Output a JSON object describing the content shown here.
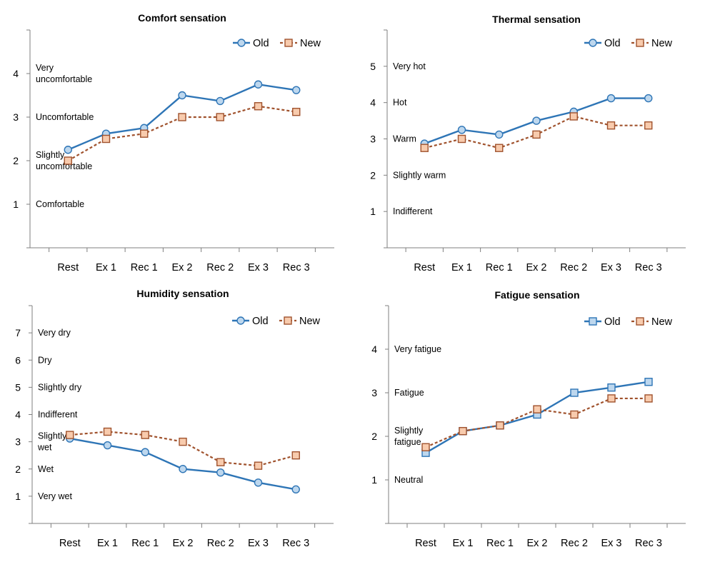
{
  "colors": {
    "old": "#2e75b6",
    "old_fill": "#bdd7ee",
    "new": "#a0522d",
    "new_fill": "#f8cbad",
    "axis": "#7f7f7f"
  },
  "chart_data": [
    {
      "type": "line",
      "title": "Comfort sensation",
      "categories": [
        "Rest",
        "Ex 1",
        "Rec 1",
        "Ex 2",
        "Rec 2",
        "Ex 3",
        "Rec 3"
      ],
      "ylim": [
        0,
        5
      ],
      "yticks": [
        "1",
        "2",
        "3",
        "4"
      ],
      "yticklabels_values": [
        1,
        2,
        3,
        4
      ],
      "level_labels": [
        {
          "y": 1,
          "lines": [
            "Comfortable"
          ]
        },
        {
          "y": 2,
          "lines": [
            "Slightly",
            "uncomfortable"
          ]
        },
        {
          "y": 3,
          "lines": [
            "Uncomfortable"
          ]
        },
        {
          "y": 4,
          "lines": [
            "Very",
            "uncomfortable"
          ]
        }
      ],
      "legend": "top-right",
      "old_marker": "circle",
      "series": [
        {
          "name": "Old",
          "values": [
            2.25,
            2.62,
            2.75,
            3.5,
            3.37,
            3.75,
            3.62
          ]
        },
        {
          "name": "New",
          "values": [
            2.0,
            2.5,
            2.62,
            3.0,
            3.0,
            3.25,
            3.12
          ]
        }
      ]
    },
    {
      "type": "line",
      "title": "Thermal sensation",
      "categories": [
        "Rest",
        "Ex 1",
        "Rec 1",
        "Ex 2",
        "Rec 2",
        "Ex 3",
        "Rec 3"
      ],
      "ylim": [
        0,
        6
      ],
      "yticks": [
        "1",
        "2",
        "3",
        "4",
        "5"
      ],
      "yticklabels_values": [
        1,
        2,
        3,
        4,
        5
      ],
      "level_labels": [
        {
          "y": 1,
          "lines": [
            "Indifferent"
          ]
        },
        {
          "y": 2,
          "lines": [
            "Slightly warm"
          ]
        },
        {
          "y": 3,
          "lines": [
            "Warm"
          ]
        },
        {
          "y": 4,
          "lines": [
            "Hot"
          ]
        },
        {
          "y": 5,
          "lines": [
            "Very hot"
          ]
        }
      ],
      "legend": "top-right",
      "old_marker": "circle",
      "series": [
        {
          "name": "Old",
          "values": [
            2.87,
            3.25,
            3.12,
            3.5,
            3.75,
            4.12,
            4.12
          ]
        },
        {
          "name": "New",
          "values": [
            2.75,
            3.0,
            2.75,
            3.12,
            3.62,
            3.37,
            3.37
          ]
        }
      ]
    },
    {
      "type": "line",
      "title": "Humidity  sensation",
      "categories": [
        "Rest",
        "Ex 1",
        "Rec 1",
        "Ex 2",
        "Rec 2",
        "Ex 3",
        "Rec 3"
      ],
      "ylim": [
        0,
        8
      ],
      "yticks": [
        "1",
        "2",
        "3",
        "4",
        "5",
        "6",
        "7"
      ],
      "yticklabels_values": [
        1,
        2,
        3,
        4,
        5,
        6,
        7
      ],
      "level_labels": [
        {
          "y": 1,
          "lines": [
            "Very wet"
          ]
        },
        {
          "y": 2,
          "lines": [
            "Wet"
          ]
        },
        {
          "y": 3,
          "lines": [
            "Slightly",
            "wet"
          ]
        },
        {
          "y": 4,
          "lines": [
            "Indifferent"
          ]
        },
        {
          "y": 5,
          "lines": [
            "Slightly dry"
          ]
        },
        {
          "y": 6,
          "lines": [
            "Dry"
          ]
        },
        {
          "y": 7,
          "lines": [
            "Very dry"
          ]
        }
      ],
      "legend": "top-right",
      "old_marker": "circle",
      "series": [
        {
          "name": "Old",
          "values": [
            3.12,
            2.87,
            2.62,
            2.0,
            1.87,
            1.5,
            1.25
          ]
        },
        {
          "name": "New",
          "values": [
            3.25,
            3.37,
            3.25,
            3.0,
            2.25,
            2.12,
            2.5
          ]
        }
      ]
    },
    {
      "type": "line",
      "title": "Fatigue sensation",
      "categories": [
        "Rest",
        "Ex 1",
        "Rec 1",
        "Ex 2",
        "Rec 2",
        "Ex 3",
        "Rec 3"
      ],
      "ylim": [
        0,
        5
      ],
      "yticks": [
        "1",
        "2",
        "3",
        "4"
      ],
      "yticklabels_values": [
        1,
        2,
        3,
        4
      ],
      "level_labels": [
        {
          "y": 1,
          "lines": [
            "Neutral"
          ]
        },
        {
          "y": 2,
          "lines": [
            "Slightly",
            "fatigue"
          ]
        },
        {
          "y": 3,
          "lines": [
            "Fatigue"
          ]
        },
        {
          "y": 4,
          "lines": [
            "Very fatigue"
          ]
        }
      ],
      "legend": "top-right",
      "old_marker": "square",
      "series": [
        {
          "name": "Old",
          "values": [
            1.62,
            2.12,
            2.25,
            2.5,
            3.0,
            3.12,
            3.25
          ]
        },
        {
          "name": "New",
          "values": [
            1.75,
            2.12,
            2.25,
            2.62,
            2.5,
            2.87,
            2.87
          ]
        }
      ]
    }
  ]
}
